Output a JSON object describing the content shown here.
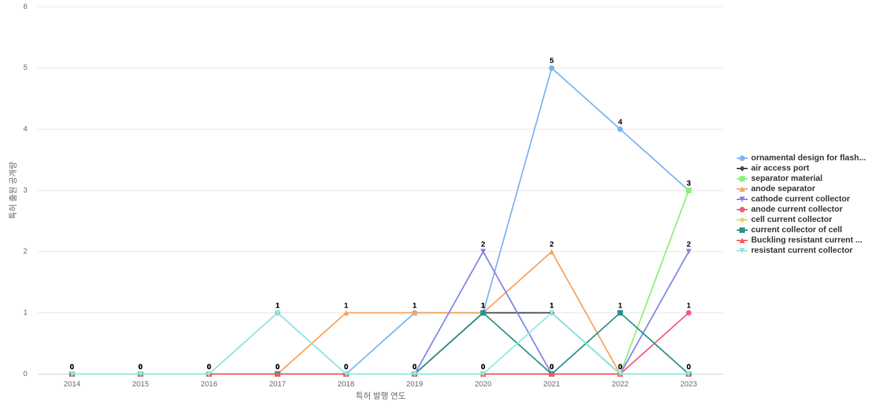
{
  "chart_data": {
    "type": "line",
    "x_label": "특허 발행 연도",
    "y_label": "특허 출원 공개량",
    "categories": [
      "2014",
      "2015",
      "2016",
      "2017",
      "2018",
      "2019",
      "2020",
      "2021",
      "2022",
      "2023"
    ],
    "ylim": [
      0,
      6
    ],
    "yticks": [
      0,
      1,
      2,
      3,
      4,
      5,
      6
    ],
    "grid": true,
    "series": [
      {
        "name": "ornamental design for flash...",
        "color": "#7cb5ec",
        "marker": "circle",
        "values": [
          0,
          0,
          0,
          1,
          0,
          1,
          1,
          5,
          4,
          3
        ]
      },
      {
        "name": "air access port",
        "color": "#434348",
        "marker": "diamond",
        "values": [
          0,
          0,
          0,
          0,
          0,
          0,
          1,
          1,
          0,
          0
        ]
      },
      {
        "name": "separator material",
        "color": "#90ed7d",
        "marker": "square",
        "values": [
          0,
          0,
          0,
          0,
          0,
          0,
          0,
          0,
          0,
          3
        ]
      },
      {
        "name": "anode separator",
        "color": "#f7a35c",
        "marker": "triangle",
        "values": [
          0,
          0,
          0,
          0,
          1,
          1,
          1,
          2,
          0,
          0
        ]
      },
      {
        "name": "cathode current collector",
        "color": "#8085e9",
        "marker": "triangle-down",
        "values": [
          0,
          0,
          0,
          0,
          0,
          0,
          2,
          0,
          0,
          2
        ]
      },
      {
        "name": "anode current collector",
        "color": "#f15c80",
        "marker": "circle",
        "values": [
          0,
          0,
          0,
          0,
          0,
          0,
          0,
          0,
          0,
          1
        ]
      },
      {
        "name": "cell current collector",
        "color": "#e4d354",
        "marker": "diamond",
        "values": [
          0,
          0,
          0,
          0,
          0,
          0,
          0,
          0,
          0,
          0
        ]
      },
      {
        "name": "current collector of cell",
        "color": "#2b908f",
        "marker": "square",
        "values": [
          0,
          0,
          0,
          0,
          0,
          0,
          1,
          0,
          1,
          0
        ]
      },
      {
        "name": "Buckling resistant current ...",
        "color": "#f45b5b",
        "marker": "triangle",
        "values": [
          0,
          0,
          0,
          0,
          0,
          0,
          0,
          0,
          0,
          0
        ]
      },
      {
        "name": "resistant current collector",
        "color": "#91e8e1",
        "marker": "triangle-down",
        "values": [
          0,
          0,
          0,
          1,
          0,
          0,
          0,
          1,
          0,
          0
        ]
      }
    ]
  }
}
